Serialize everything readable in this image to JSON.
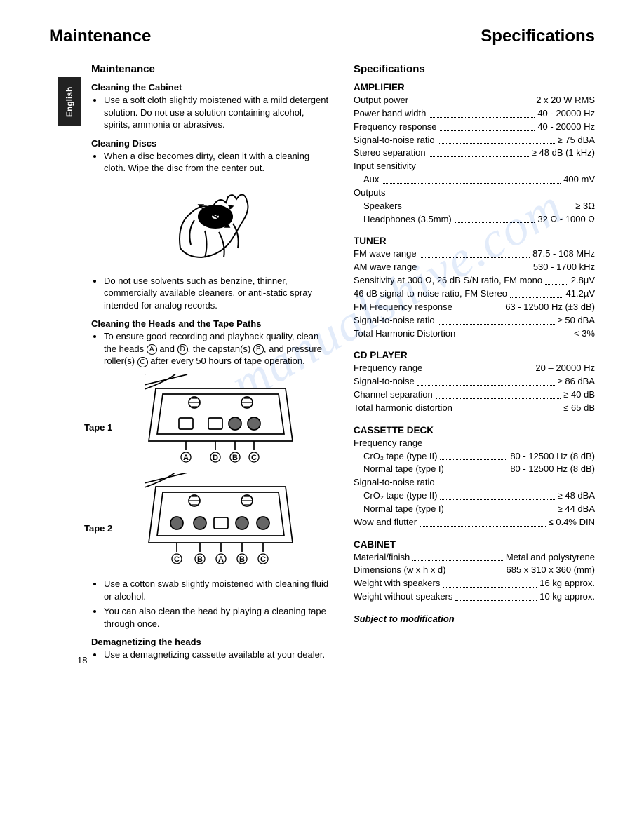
{
  "header": {
    "left": "Maintenance",
    "right": "Specifications"
  },
  "lang_tab": "English",
  "page_number": "18",
  "watermark_text": "manualshive.com",
  "maintenance": {
    "title": "Maintenance",
    "cabinet": {
      "heading": "Cleaning the Cabinet",
      "bullet": "Use a soft cloth slightly moistened with a mild detergent solution. Do not use a solution containing alcohol, spirits, ammonia or abrasives."
    },
    "discs": {
      "heading": "Cleaning Discs",
      "bullet1": "When a disc becomes dirty, clean it with a cleaning cloth. Wipe the disc from the center out.",
      "bullet2": "Do not use solvents such as benzine, thinner, commercially available cleaners, or anti-static spray intended for analog records."
    },
    "heads": {
      "heading": "Cleaning the Heads and the Tape Paths",
      "bullet1_pre": "To ensure good recording and playback quality, clean the heads ",
      "bullet1_mid": " and ",
      "bullet1_mid2": ", the capstan(s) ",
      "bullet1_mid3": ", and pressure roller(s) ",
      "bullet1_post": " after every 50 hours of tape operation.",
      "tape1_label": "Tape 1",
      "tape2_label": "Tape 2",
      "tape1_letters": [
        "A",
        "D",
        "B",
        "C"
      ],
      "tape2_letters": [
        "C",
        "B",
        "A",
        "B",
        "C"
      ],
      "bullet2": "Use a cotton swab slightly moistened with cleaning fluid or alcohol.",
      "bullet3": "You can also clean the head by playing a cleaning tape through once."
    },
    "demag": {
      "heading": "Demagnetizing the heads",
      "bullet": "Use a demagnetizing cassette available at your dealer."
    }
  },
  "specs": {
    "title": "Specifications",
    "groups": [
      {
        "title": "AMPLIFIER",
        "lines": [
          {
            "label": "Output power",
            "val": "2 x 20 W RMS"
          },
          {
            "label": "Power band width",
            "val": "40 - 20000 Hz"
          },
          {
            "label": "Frequency response",
            "val": "40 - 20000 Hz"
          },
          {
            "label": "Signal-to-noise ratio",
            "val": "≥ 75 dBA"
          },
          {
            "label": "Stereo separation",
            "val": "≥ 48 dB (1 kHz)"
          },
          {
            "label": "Input sensitivity",
            "plain": true
          },
          {
            "label": "Aux",
            "val": "400 mV",
            "indent": 1
          },
          {
            "label": "Outputs",
            "plain": true
          },
          {
            "label": "Speakers",
            "val": "≥ 3Ω",
            "indent": 1
          },
          {
            "label": "Headphones (3.5mm)",
            "val": "32 Ω - 1000 Ω",
            "indent": 1
          }
        ]
      },
      {
        "title": "TUNER",
        "lines": [
          {
            "label": "FM wave range",
            "val": "87.5 - 108 MHz"
          },
          {
            "label": "AM wave range",
            "val": "530 - 1700 kHz"
          },
          {
            "label": "Sensitivity at 300 Ω, 26 dB S/N ratio, FM mono",
            "val": "2.8µV"
          },
          {
            "label": "46 dB signal-to-noise ratio, FM Stereo",
            "val": "41.2µV"
          },
          {
            "label": "FM Frequency response",
            "val": "63 - 12500 Hz (±3 dB)"
          },
          {
            "label": "Signal-to-noise ratio",
            "val": "≥ 50 dBA"
          },
          {
            "label": "Total Harmonic Distortion",
            "val": "< 3%"
          }
        ]
      },
      {
        "title": "CD PLAYER",
        "lines": [
          {
            "label": "Frequency range",
            "val": "20 – 20000 Hz"
          },
          {
            "label": "Signal-to-noise",
            "val": "≥ 86 dBA"
          },
          {
            "label": "Channel separation",
            "val": "≥ 40 dB"
          },
          {
            "label": "Total harmonic distortion",
            "val": "≤ 65 dB"
          }
        ]
      },
      {
        "title": "CASSETTE DECK",
        "lines": [
          {
            "label": "Frequency range",
            "plain": true
          },
          {
            "label": "CrO₂ tape (type II)",
            "val": "80 - 12500 Hz (8 dB)",
            "indent": 1
          },
          {
            "label": "Normal tape (type I)",
            "val": "80 - 12500 Hz (8 dB)",
            "indent": 1
          },
          {
            "label": "Signal-to-noise ratio",
            "plain": true
          },
          {
            "label": "CrO₂ tape (type II)",
            "val": "≥ 48 dBA",
            "indent": 1
          },
          {
            "label": "Normal tape (type I)",
            "val": "≥ 44 dBA",
            "indent": 1
          },
          {
            "label": "Wow and flutter",
            "val": "≤ 0.4% DIN"
          }
        ]
      },
      {
        "title": "CABINET",
        "lines": [
          {
            "label": "Material/finish",
            "val": "Metal and polystyrene"
          },
          {
            "label": "Dimensions (w x h x d)",
            "val": "685 x 310 x 360 (mm)"
          },
          {
            "label": "Weight with speakers",
            "val": "16 kg approx."
          },
          {
            "label": "Weight without speakers",
            "val": "10 kg approx."
          }
        ]
      }
    ],
    "footnote": "Subject to modification"
  }
}
